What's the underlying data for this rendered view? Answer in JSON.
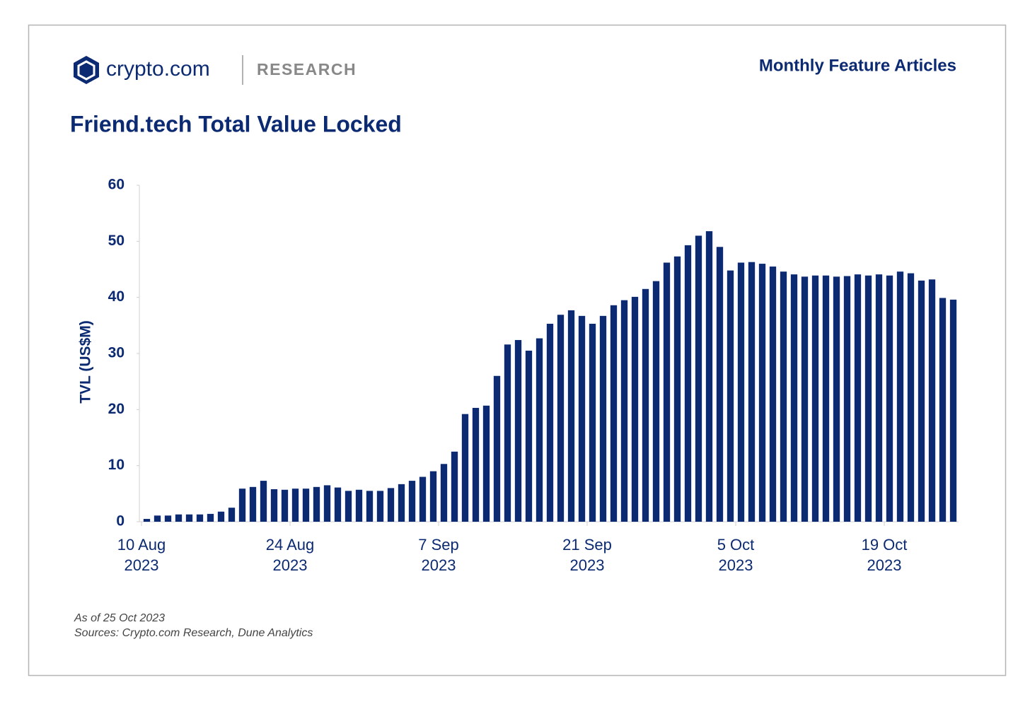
{
  "header": {
    "brand": "crypto.com",
    "section": "RESEARCH",
    "tagline": "Monthly Feature Articles"
  },
  "chart_data": {
    "type": "bar",
    "title": "Friend.tech Total Value Locked",
    "ylabel": "TVL (US$M)",
    "color": "#0b2a72",
    "categories": [
      "2023-08-10",
      "2023-08-11",
      "2023-08-12",
      "2023-08-13",
      "2023-08-14",
      "2023-08-15",
      "2023-08-16",
      "2023-08-17",
      "2023-08-18",
      "2023-08-19",
      "2023-08-20",
      "2023-08-21",
      "2023-08-22",
      "2023-08-23",
      "2023-08-24",
      "2023-08-25",
      "2023-08-26",
      "2023-08-27",
      "2023-08-28",
      "2023-08-29",
      "2023-08-30",
      "2023-08-31",
      "2023-09-01",
      "2023-09-02",
      "2023-09-03",
      "2023-09-04",
      "2023-09-05",
      "2023-09-06",
      "2023-09-07",
      "2023-09-08",
      "2023-09-09",
      "2023-09-10",
      "2023-09-11",
      "2023-09-12",
      "2023-09-13",
      "2023-09-14",
      "2023-09-15",
      "2023-09-16",
      "2023-09-17",
      "2023-09-18",
      "2023-09-19",
      "2023-09-20",
      "2023-09-21",
      "2023-09-22",
      "2023-09-23",
      "2023-09-24",
      "2023-09-25",
      "2023-09-26",
      "2023-09-27",
      "2023-09-28",
      "2023-09-29",
      "2023-09-30",
      "2023-10-01",
      "2023-10-02",
      "2023-10-03",
      "2023-10-04",
      "2023-10-05",
      "2023-10-06",
      "2023-10-07",
      "2023-10-08",
      "2023-10-09",
      "2023-10-10",
      "2023-10-11",
      "2023-10-12",
      "2023-10-13",
      "2023-10-14",
      "2023-10-15",
      "2023-10-16",
      "2023-10-17",
      "2023-10-18",
      "2023-10-19",
      "2023-10-20",
      "2023-10-21",
      "2023-10-22",
      "2023-10-23",
      "2023-10-24",
      "2023-10-25"
    ],
    "values": [
      0.5,
      1.1,
      1.1,
      1.3,
      1.3,
      1.3,
      1.4,
      1.8,
      2.5,
      5.9,
      6.2,
      7.3,
      5.8,
      5.7,
      5.9,
      5.9,
      6.2,
      6.5,
      6.1,
      5.5,
      5.7,
      5.5,
      5.5,
      6.0,
      6.7,
      7.3,
      8.0,
      9.0,
      10.3,
      12.5,
      19.2,
      20.3,
      20.7,
      26.0,
      31.6,
      32.4,
      30.5,
      32.7,
      35.3,
      36.9,
      37.7,
      36.7,
      35.3,
      36.7,
      38.6,
      39.5,
      40.1,
      41.5,
      42.9,
      46.2,
      47.3,
      49.3,
      51.0,
      51.8,
      49.0,
      44.8,
      46.2,
      46.3,
      46.0,
      45.5,
      44.6,
      44.1,
      43.7,
      43.9,
      43.9,
      43.7,
      43.8,
      44.1,
      43.9,
      44.1,
      43.9,
      44.6,
      44.3,
      43.0,
      43.2,
      39.9,
      39.6
    ],
    "ylim": [
      0,
      60
    ],
    "yticks": [
      0,
      10,
      20,
      30,
      40,
      50,
      60
    ],
    "xticks": [
      {
        "value": "2023-08-10",
        "label": [
          "10 Aug",
          "2023"
        ]
      },
      {
        "value": "2023-08-24",
        "label": [
          "24 Aug",
          "2023"
        ]
      },
      {
        "value": "2023-09-07",
        "label": [
          "7 Sep",
          "2023"
        ]
      },
      {
        "value": "2023-09-21",
        "label": [
          "21 Sep",
          "2023"
        ]
      },
      {
        "value": "2023-10-05",
        "label": [
          "5 Oct",
          "2023"
        ]
      },
      {
        "value": "2023-10-19",
        "label": [
          "19 Oct",
          "2023"
        ]
      }
    ],
    "notes": [
      "As of 25 Oct 2023",
      "Sources: Crypto.com Research, Dune Analytics"
    ]
  }
}
